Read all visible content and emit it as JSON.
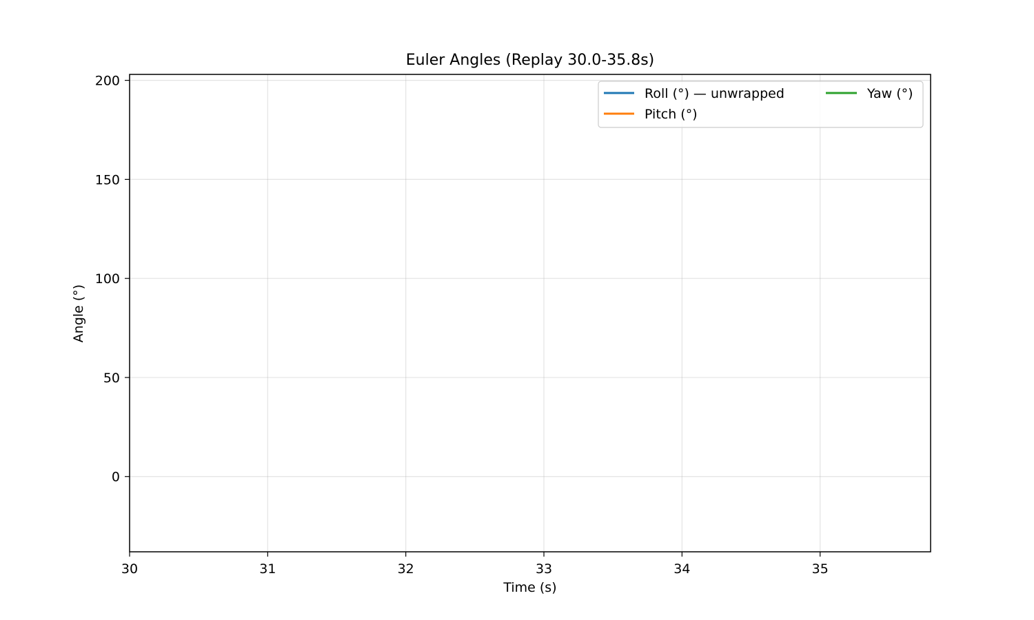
{
  "chart_data": {
    "type": "line",
    "title": "Euler Angles (Replay 30.0-35.8s)",
    "xlabel": "Time (s)",
    "ylabel": "Angle (°)",
    "xlim": [
      30,
      35.8
    ],
    "ylim": [
      -38,
      203
    ],
    "xticks": [
      30,
      31,
      32,
      33,
      34,
      35
    ],
    "yticks": [
      0,
      50,
      100,
      150,
      200
    ],
    "xtick_labels": [
      "30",
      "31",
      "32",
      "33",
      "34",
      "35"
    ],
    "ytick_labels": [
      "0",
      "50",
      "100",
      "150",
      "200"
    ],
    "grid": true,
    "legend_position": "top-right",
    "legend_columns": 2,
    "series": [
      {
        "name": "Roll (°) — unwrapped",
        "color": "#1f77b4",
        "x": [],
        "y": []
      },
      {
        "name": "Pitch (°)",
        "color": "#ff7f0e",
        "x": [],
        "y": []
      },
      {
        "name": "Yaw (°)",
        "color": "#2ca02c",
        "x": [],
        "y": []
      }
    ]
  }
}
